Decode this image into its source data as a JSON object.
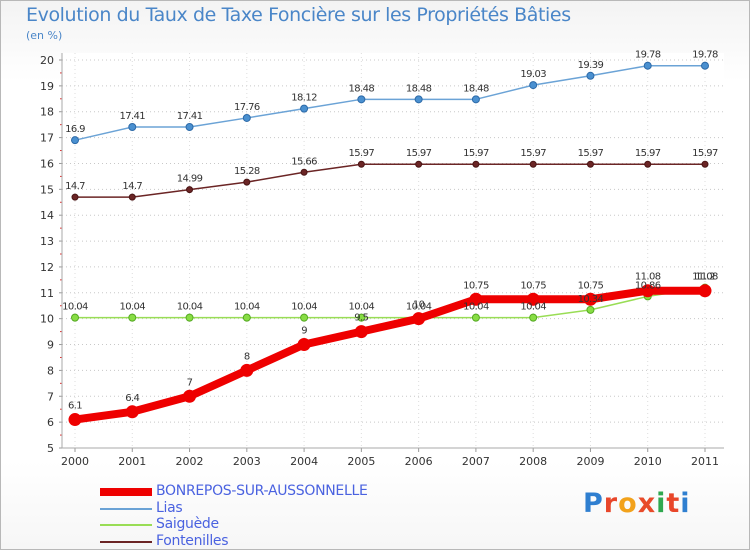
{
  "title": "Evolution du Taux de Taxe Foncière sur les Propriétés Bâties",
  "unit": "(en %)",
  "logo_text": "Proxiti",
  "colors": {
    "title": "#4a86c8",
    "bonrepos": "#ee0000",
    "lias": "#6ba3d6",
    "saiguede": "#99dd55",
    "fontenilles": "#6b2525"
  },
  "chart_data": {
    "type": "line",
    "title": "Evolution du Taux de Taxe Foncière sur les Propriétés Bâties",
    "ylabel": "(en %)",
    "xlabel": "",
    "x": [
      "2000",
      "2001",
      "2002",
      "2003",
      "2004",
      "2005",
      "2006",
      "2007",
      "2008",
      "2009",
      "2010",
      "2011"
    ],
    "ylim": [
      5,
      20
    ],
    "yticks": [
      "5",
      "6",
      "7",
      "8",
      "9",
      "10",
      "11",
      "12",
      "13",
      "14",
      "15",
      "16",
      "17",
      "18",
      "19",
      "20"
    ],
    "grid": "horizontal dotted",
    "series": [
      {
        "name": "BONREPOS-SUR-AUSSONNELLE",
        "color": "#ee0000",
        "values": [
          6.1,
          6.4,
          7,
          8,
          9,
          9.5,
          10,
          10.75,
          10.75,
          10.75,
          11.08,
          11.08
        ],
        "labels": [
          "6.1",
          "6.4",
          "7",
          "8",
          "9",
          "9.5",
          "10",
          "10.75",
          "10.75",
          "10.75",
          "11.08",
          "11.08"
        ]
      },
      {
        "name": "Lias",
        "color": "#6ba3d6",
        "values": [
          16.9,
          17.41,
          17.41,
          17.76,
          18.12,
          18.48,
          18.48,
          18.48,
          19.03,
          19.39,
          19.78,
          19.78
        ],
        "labels": [
          "16.9",
          "17.41",
          "17.41",
          "17.76",
          "18.12",
          "18.48",
          "18.48",
          "18.48",
          "19.03",
          "19.39",
          "19.78",
          "19.78"
        ]
      },
      {
        "name": "Saiguède",
        "color": "#99dd55",
        "values": [
          10.04,
          10.04,
          10.04,
          10.04,
          10.04,
          10.04,
          10.04,
          10.04,
          10.04,
          10.34,
          10.86,
          11.2
        ],
        "labels": [
          "10.04",
          "10.04",
          "10.04",
          "10.04",
          "10.04",
          "10.04",
          "10.04",
          "10.04",
          "10.04",
          "10.34",
          "10.86",
          "11.2"
        ]
      },
      {
        "name": "Fontenilles",
        "color": "#6b2525",
        "values": [
          14.7,
          14.7,
          14.99,
          15.28,
          15.66,
          15.97,
          15.97,
          15.97,
          15.97,
          15.97,
          15.97,
          15.97
        ],
        "labels": [
          "14.7",
          "14.7",
          "14.99",
          "15.28",
          "15.66",
          "15.97",
          "15.97",
          "15.97",
          "15.97",
          "15.97",
          "15.97",
          "15.97"
        ]
      }
    ],
    "legend": "bottom-left"
  }
}
